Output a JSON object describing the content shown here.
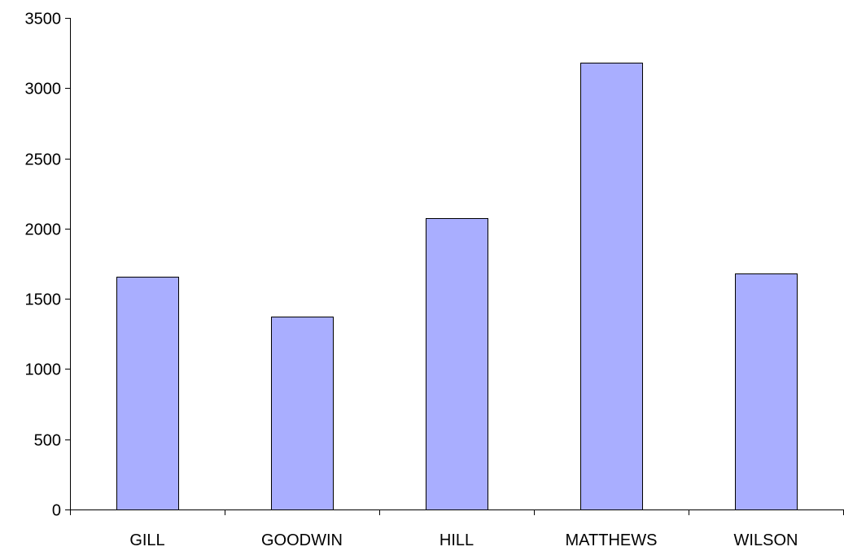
{
  "chart_data": {
    "type": "bar",
    "title": "",
    "xlabel": "",
    "ylabel": "",
    "categories": [
      "GILL",
      "GOODWIN",
      "HILL",
      "MATTHEWS",
      "WILSON"
    ],
    "values": [
      1655,
      1375,
      2077,
      3183,
      1678
    ],
    "ylim": [
      0,
      3500
    ],
    "yticks": [
      "0",
      "500",
      "1000",
      "1500",
      "2000",
      "2500",
      "3000",
      "3500"
    ],
    "grid": false,
    "legend": "none",
    "colors": {
      "bar_fill": "#a9aeff",
      "bar_stroke": "#000000",
      "axis": "#000000"
    }
  }
}
